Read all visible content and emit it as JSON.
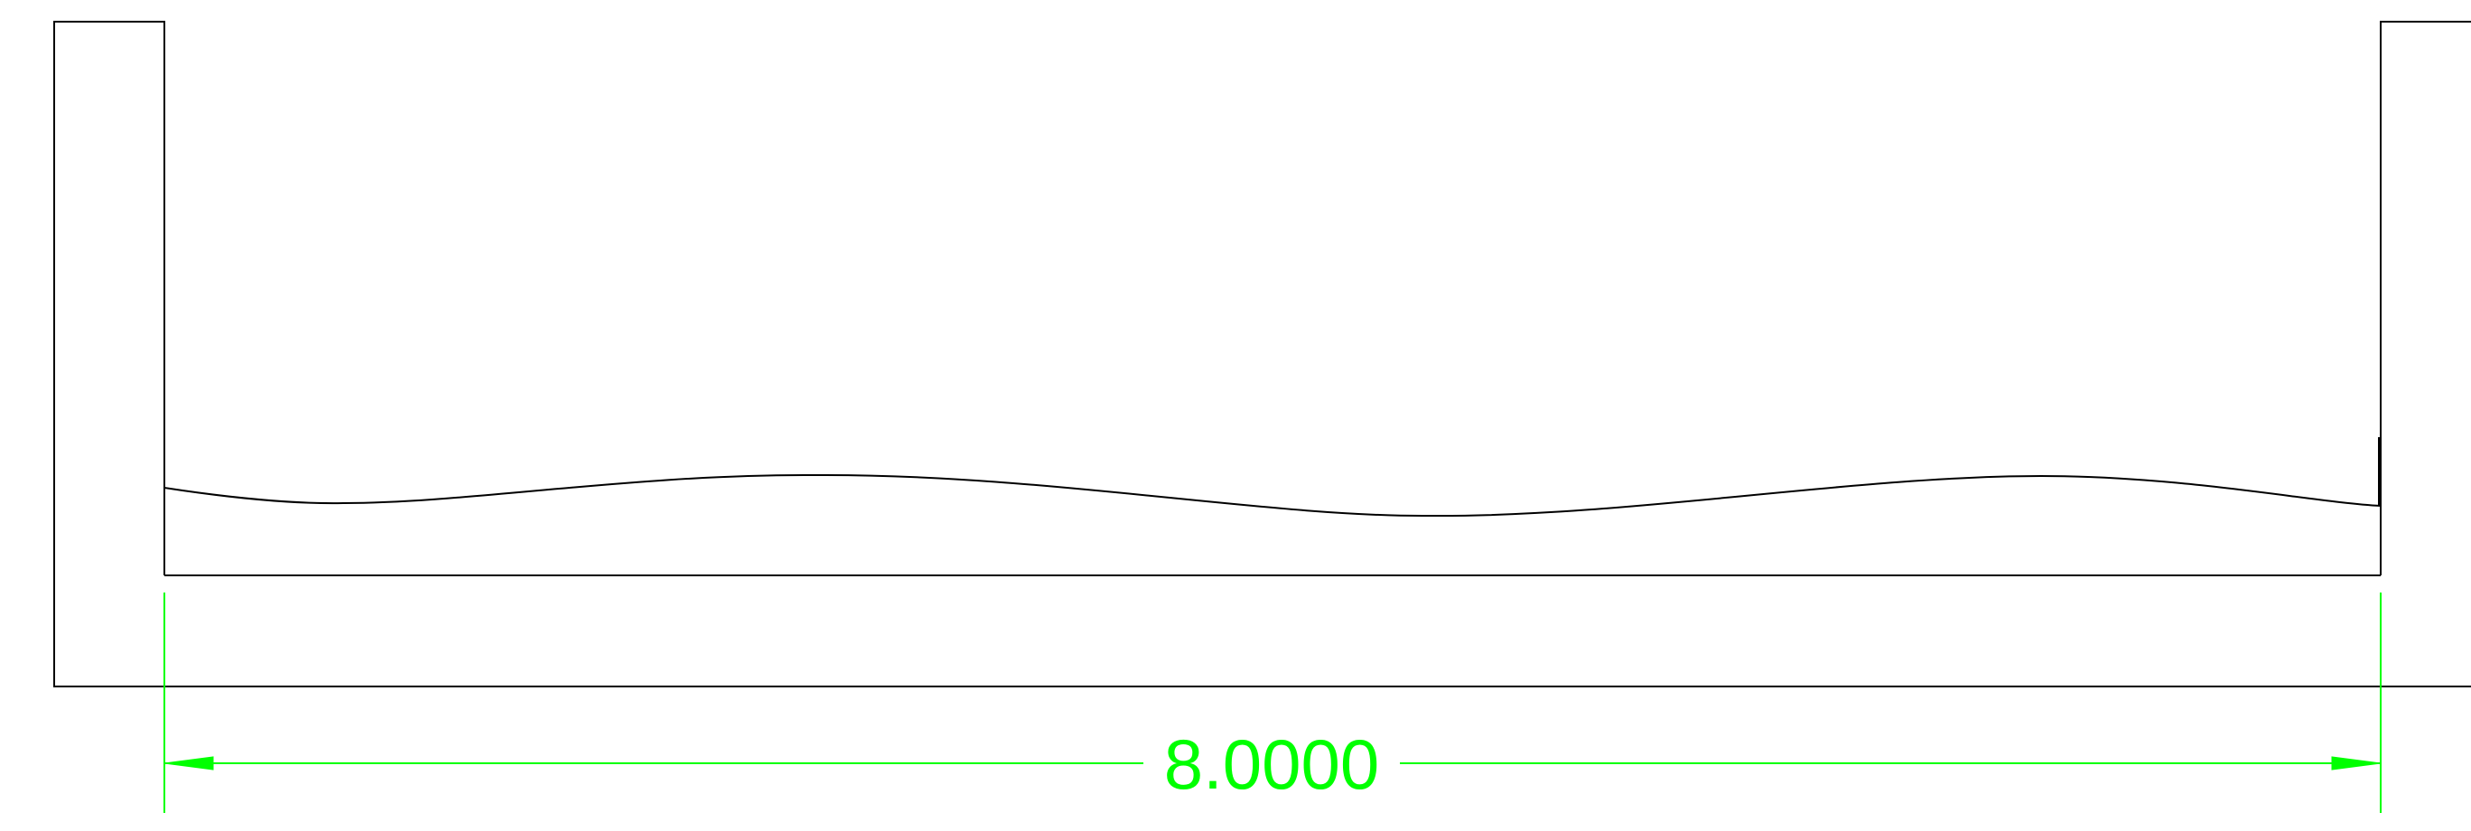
{
  "drawing": {
    "dimension": {
      "value_text": "8.0000",
      "color": "#00ff00"
    },
    "line_color": "#000000",
    "background_color": "#ffffff"
  }
}
